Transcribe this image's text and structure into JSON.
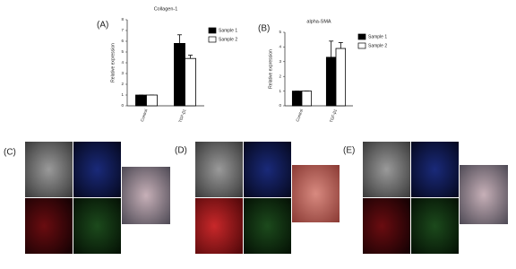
{
  "chart_data": [
    {
      "type": "bar",
      "label": "(A)",
      "title": "Collagen-1",
      "ylabel": "Relative expression",
      "categories": [
        "Control",
        "TGF-β1"
      ],
      "series": [
        {
          "name": "Sample 1",
          "color": "#000000",
          "values": [
            1,
            5.8
          ],
          "errors": [
            0,
            0.8
          ]
        },
        {
          "name": "Sample 2",
          "color": "#ffffff",
          "values": [
            1,
            4.4
          ],
          "errors": [
            0,
            0.3
          ]
        }
      ],
      "ylim": [
        0,
        8
      ],
      "yticks": [
        0,
        1,
        2,
        3,
        4,
        5,
        6,
        7,
        8
      ]
    },
    {
      "type": "bar",
      "label": "(B)",
      "title": "alpha-SMA",
      "ylabel": "Relative expression",
      "categories": [
        "Control",
        "TGF-β1"
      ],
      "series": [
        {
          "name": "Sample 1",
          "color": "#000000",
          "values": [
            1,
            3.3
          ],
          "errors": [
            0,
            1.1
          ]
        },
        {
          "name": "Sample 2",
          "color": "#ffffff",
          "values": [
            1,
            3.9
          ],
          "errors": [
            0,
            0.4
          ]
        }
      ],
      "ylim": [
        0,
        5
      ],
      "yticks": [
        0,
        1,
        2,
        3,
        4,
        5
      ]
    }
  ],
  "panels": [
    {
      "label": "(C)"
    },
    {
      "label": "(D)"
    },
    {
      "label": "(E)"
    }
  ]
}
